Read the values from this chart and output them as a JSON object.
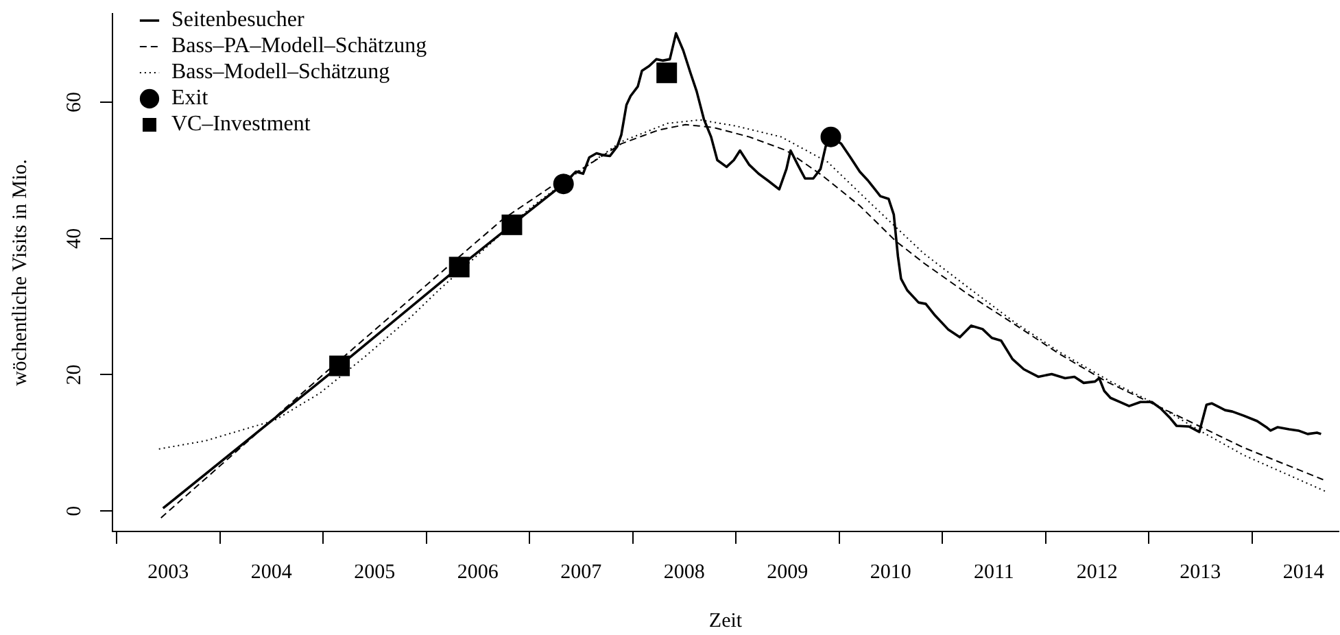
{
  "chart_data": {
    "type": "line",
    "xlabel": "Zeit",
    "ylabel": "wöchentliche Visits in Mio.",
    "legend": "top left",
    "xlim": [
      2002.96,
      2014.84
    ],
    "xticks": [
      {
        "value": 2003,
        "label": null
      },
      {
        "value": 2003.5,
        "label": "2003"
      },
      {
        "value": 2004,
        "label": null
      },
      {
        "value": 2004.5,
        "label": "2004"
      },
      {
        "value": 2005,
        "label": null
      },
      {
        "value": 2005.5,
        "label": "2005"
      },
      {
        "value": 2006,
        "label": null
      },
      {
        "value": 2006.5,
        "label": "2006"
      },
      {
        "value": 2007,
        "label": null
      },
      {
        "value": 2007.5,
        "label": "2007"
      },
      {
        "value": 2008,
        "label": null
      },
      {
        "value": 2008.5,
        "label": "2008"
      },
      {
        "value": 2009,
        "label": null
      },
      {
        "value": 2009.5,
        "label": "2009"
      },
      {
        "value": 2010,
        "label": null
      },
      {
        "value": 2010.5,
        "label": "2010"
      },
      {
        "value": 2011,
        "label": null
      },
      {
        "value": 2011.5,
        "label": "2011"
      },
      {
        "value": 2012,
        "label": null
      },
      {
        "value": 2012.5,
        "label": "2012"
      },
      {
        "value": 2013,
        "label": null
      },
      {
        "value": 2013.5,
        "label": "2013"
      },
      {
        "value": 2014,
        "label": null
      },
      {
        "value": 2014.5,
        "label": "2014"
      }
    ],
    "ylim": [
      -3,
      73
    ],
    "yticks": [
      0,
      20,
      40,
      60
    ],
    "series": [
      {
        "name": "Seitenbesucher",
        "line_style": "solid",
        "color": "#000000",
        "x": [
          2003.45,
          2005.16,
          2006.32,
          2006.83,
          2007.33,
          2007.45,
          2007.52,
          2007.58,
          2007.65,
          2007.72,
          2007.78,
          2007.85,
          2007.89,
          2007.94,
          2007.98,
          2008.05,
          2008.09,
          2008.16,
          2008.23,
          2008.29,
          2008.36,
          2008.42,
          2008.49,
          2008.56,
          2008.62,
          2008.69,
          2008.76,
          2008.82,
          2008.91,
          2008.98,
          2009.04,
          2009.13,
          2009.22,
          2009.31,
          2009.42,
          2009.49,
          2009.53,
          2009.6,
          2009.67,
          2009.75,
          2009.82,
          2009.87,
          2009.92,
          2010.02,
          2010.11,
          2010.2,
          2010.28,
          2010.4,
          2010.48,
          2010.53,
          2010.57,
          2010.6,
          2010.66,
          2010.77,
          2010.84,
          2010.93,
          2011.06,
          2011.17,
          2011.28,
          2011.39,
          2011.48,
          2011.57,
          2011.68,
          2011.79,
          2011.93,
          2012.06,
          2012.19,
          2012.28,
          2012.37,
          2012.48,
          2012.52,
          2012.57,
          2012.63,
          2012.72,
          2012.81,
          2012.92,
          2013.03,
          2013.12,
          2013.21,
          2013.27,
          2013.39,
          2013.49,
          2013.56,
          2013.61,
          2013.74,
          2013.81,
          2013.92,
          2014.05,
          2014.14,
          2014.18,
          2014.25,
          2014.36,
          2014.45,
          2014.54,
          2014.63,
          2014.67
        ],
        "values": [
          0.4,
          21.3,
          35.8,
          42.0,
          48.0,
          49.8,
          49.5,
          51.9,
          52.5,
          52.2,
          52.1,
          53.5,
          55.2,
          59.6,
          60.9,
          62.3,
          64.6,
          65.3,
          66.3,
          66.1,
          66.3,
          70.1,
          67.6,
          64.3,
          61.6,
          57.5,
          54.9,
          51.5,
          50.5,
          51.5,
          52.9,
          50.8,
          49.5,
          48.5,
          47.2,
          50.2,
          52.9,
          50.8,
          48.8,
          48.8,
          50.2,
          53.5,
          54.9,
          53.9,
          51.9,
          49.8,
          48.5,
          46.2,
          45.8,
          43.5,
          37.4,
          34.1,
          32.4,
          30.6,
          30.4,
          28.7,
          26.6,
          25.5,
          27.2,
          26.7,
          25.4,
          25.0,
          22.3,
          20.8,
          19.7,
          20.1,
          19.5,
          19.7,
          18.8,
          19.0,
          19.5,
          17.6,
          16.6,
          16.0,
          15.4,
          16.0,
          16.0,
          15.0,
          13.6,
          12.5,
          12.4,
          11.6,
          15.6,
          15.8,
          14.8,
          14.6,
          14.0,
          13.2,
          12.3,
          11.8,
          12.3,
          12.0,
          11.8,
          11.3,
          11.5,
          11.3
        ]
      },
      {
        "name": "Bass–PA–Modell–Schätzung",
        "line_style": "dashed",
        "color": "#000000",
        "x": [
          2003.43,
          2004.0,
          2005.0,
          2006.12,
          2006.74,
          2007.23,
          2007.54,
          2007.89,
          2008.25,
          2008.51,
          2008.78,
          2009.13,
          2009.49,
          2009.84,
          2010.2,
          2010.55,
          2010.82,
          2011.26,
          2011.7,
          2012.14,
          2012.59,
          2013.03,
          2013.47,
          2013.92,
          2014.69
        ],
        "values": [
          -1.0,
          6.6,
          20.0,
          34.7,
          42.8,
          47.8,
          50.5,
          53.9,
          55.9,
          56.7,
          56.3,
          54.9,
          52.9,
          49.2,
          44.8,
          39.6,
          36.4,
          31.7,
          27.4,
          23.0,
          19.0,
          15.8,
          12.6,
          9.3,
          4.6
        ]
      },
      {
        "name": "Bass–Modell–Schätzung",
        "line_style": "dotted",
        "color": "#000000",
        "x": [
          2003.41,
          2003.86,
          2004.53,
          2004.97,
          2005.41,
          2005.86,
          2006.12,
          2006.56,
          2007.01,
          2007.45,
          2007.89,
          2008.34,
          2008.65,
          2009.0,
          2009.44,
          2009.89,
          2010.33,
          2010.82,
          2011.26,
          2011.7,
          2012.14,
          2012.63,
          2013.03,
          2013.47,
          2013.92,
          2014.71
        ],
        "values": [
          9.1,
          10.3,
          13.3,
          17.3,
          22.7,
          28.6,
          32.4,
          38.4,
          44.5,
          49.5,
          54.2,
          56.9,
          57.4,
          56.5,
          54.9,
          51.2,
          44.8,
          37.8,
          32.7,
          27.7,
          23.3,
          19.0,
          16.0,
          12.0,
          8.2,
          2.9
        ]
      },
      {
        "name": "Exit",
        "type": "scatter",
        "marker": "circle",
        "color": "#000000",
        "x": [
          2007.33,
          2009.92
        ],
        "values": [
          48.0,
          54.9
        ]
      },
      {
        "name": "VC–Investment",
        "type": "scatter",
        "marker": "square",
        "color": "#000000",
        "x": [
          2005.16,
          2006.32,
          2006.83,
          2008.33
        ],
        "values": [
          21.3,
          35.8,
          42.0,
          64.3
        ]
      }
    ]
  }
}
